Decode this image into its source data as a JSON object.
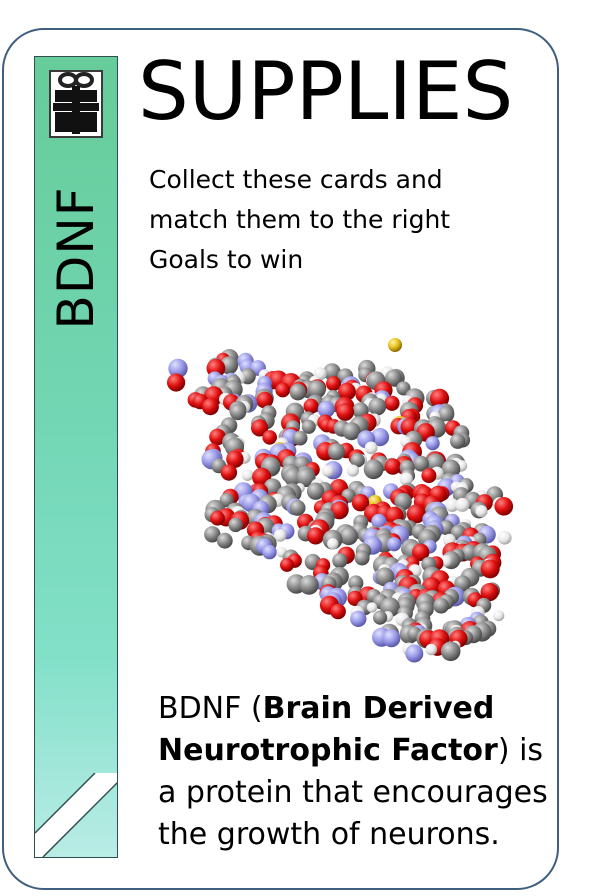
{
  "card": {
    "category": "SUPPLIES",
    "name": "BDNF",
    "instructions": [
      "Collect these cards and",
      "match them  to the right",
      "Goals to win"
    ],
    "description": {
      "prefix": "BDNF (",
      "bold": "Brain Derived Neurotrophic Factor",
      "suffix": ") is a protein that encourages the growth of neurons."
    },
    "icons": {
      "category_icon": "gift-icon",
      "illustration": "protein-molecule-illustration"
    },
    "colors": {
      "border": "#3f5f7f",
      "strip_top": "#66cc99",
      "strip_bottom": "#b9ece6"
    }
  }
}
